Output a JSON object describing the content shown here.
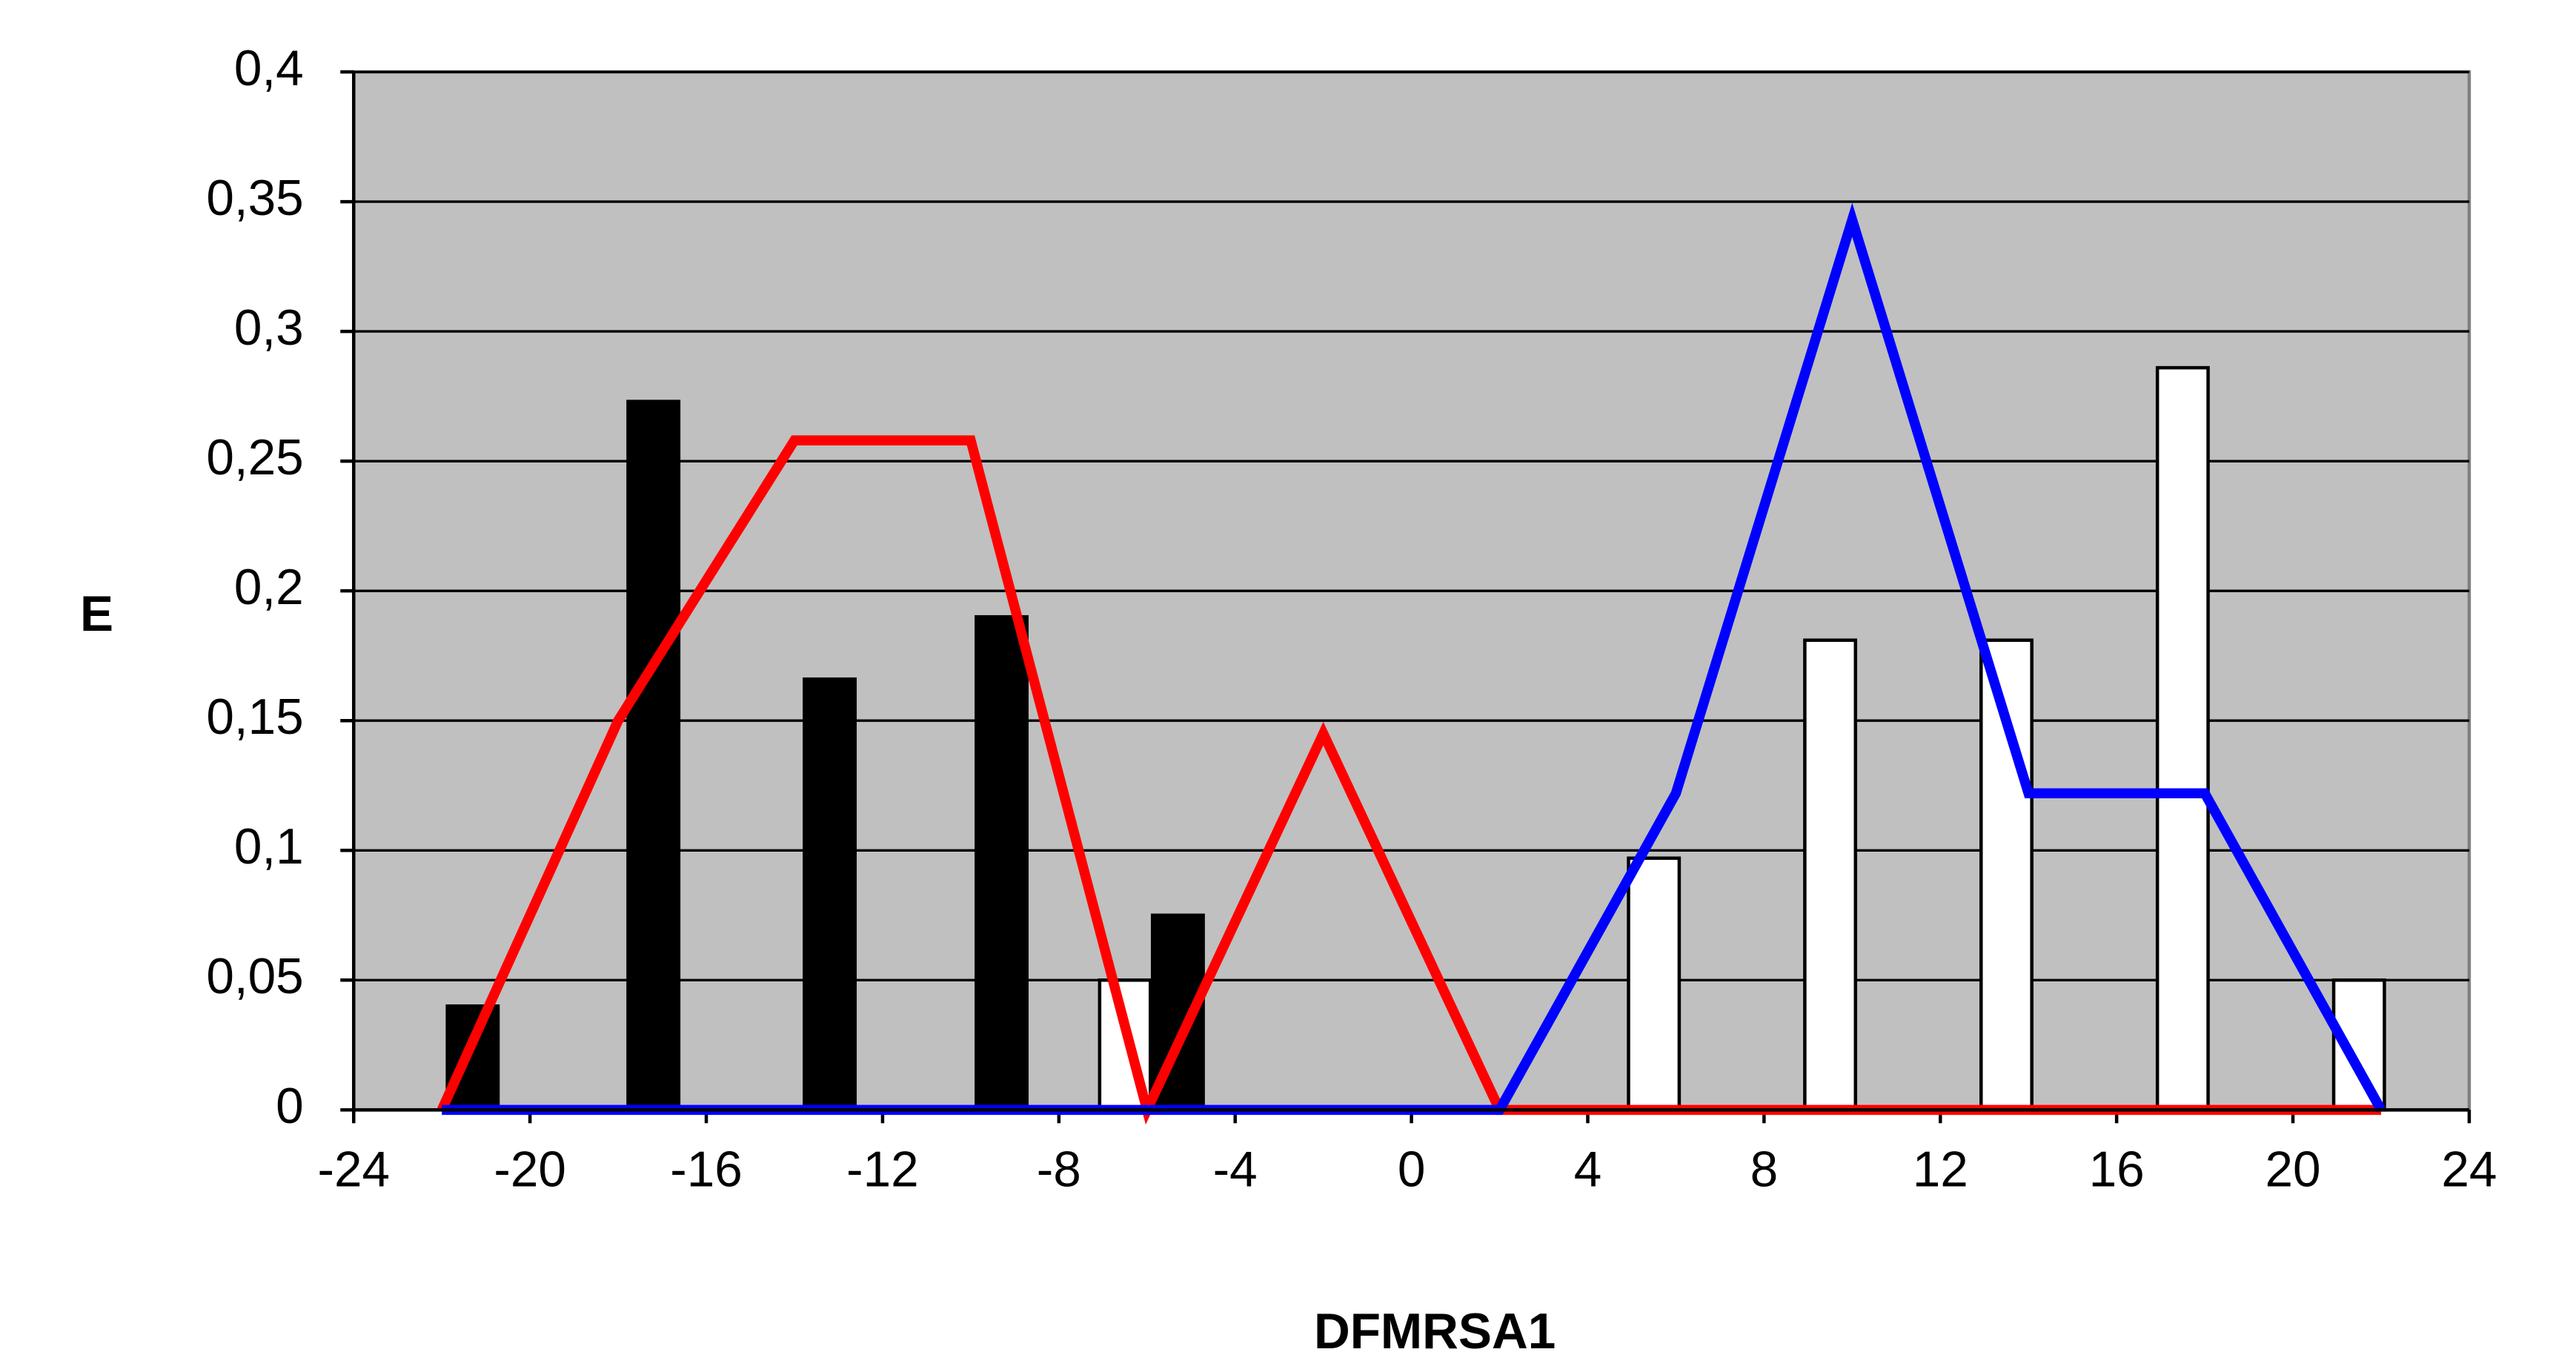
{
  "chart_data": {
    "type": "combo",
    "x_label": "DFMRSA1",
    "y_label": "E",
    "xlim": [
      -24,
      24
    ],
    "ylim": [
      0,
      0.4
    ],
    "xticks": [
      -24,
      -20,
      -16,
      -12,
      -8,
      -4,
      0,
      4,
      8,
      12,
      16,
      20,
      24
    ],
    "yticks": [
      0,
      {
        "value": 0.05,
        "label": "0,05"
      },
      {
        "value": 0.1,
        "label": "0,1"
      },
      {
        "value": 0.15,
        "label": "0,15"
      },
      {
        "value": 0.2,
        "label": "0,2"
      },
      {
        "value": 0.25,
        "label": "0,25"
      },
      {
        "value": 0.3,
        "label": "0,3"
      },
      {
        "value": 0.35,
        "label": "0,35"
      },
      {
        "value": 0.4,
        "label": "0,4"
      }
    ],
    "grid": true,
    "series": [
      {
        "type": "bar",
        "color": "#000000",
        "x": [
          -21.3,
          -17.2,
          -13.2,
          -9.3,
          -5.3
        ],
        "values": [
          0.04,
          0.273,
          0.166,
          0.19,
          0.075
        ]
      },
      {
        "type": "bar",
        "color": "#ffffff",
        "x": [
          -6.5,
          5.5,
          9.5,
          13.5,
          17.5,
          21.5
        ],
        "values": [
          0.05,
          0.097,
          0.181,
          0.181,
          0.286,
          0.05
        ]
      },
      {
        "type": "line",
        "color": "#ff0000",
        "x": [
          -22,
          -18,
          -14,
          -10,
          -6,
          -2,
          2,
          6,
          10,
          14,
          18,
          22
        ],
        "values": [
          0,
          0.15,
          0.258,
          0.258,
          0,
          0.145,
          0,
          0,
          0,
          0,
          0,
          0
        ]
      },
      {
        "type": "line",
        "color": "#0000ff",
        "x": [
          -22,
          -18,
          -14,
          -10,
          -6,
          -2,
          2,
          6,
          10,
          14,
          18,
          22
        ],
        "values": [
          0,
          0,
          0,
          0,
          0,
          0,
          0,
          0.122,
          0.343,
          0.122,
          0.122,
          0
        ]
      }
    ]
  }
}
